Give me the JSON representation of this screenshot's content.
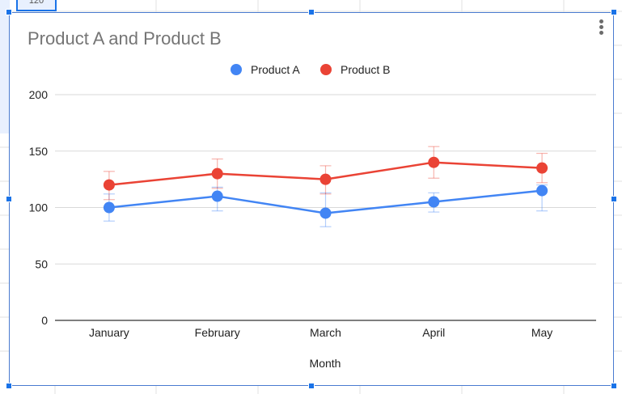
{
  "colors": {
    "product_a": "#4285f4",
    "product_b": "#ea4335",
    "gridline": "#d9d9d9",
    "baseline": "#333333",
    "selection": "#1a73e8"
  },
  "sheet": {
    "cell_fragment": "120"
  },
  "chart_data": {
    "type": "line",
    "title": "Product A and Product B",
    "xlabel": "Month",
    "ylabel": "",
    "categories": [
      "January",
      "February",
      "March",
      "April",
      "May"
    ],
    "series": [
      {
        "name": "Product A",
        "values": [
          100,
          110,
          95,
          105,
          115
        ],
        "error_low": [
          88,
          97,
          83,
          96,
          97
        ],
        "error_high": [
          112,
          118,
          113,
          113,
          120
        ]
      },
      {
        "name": "Product B",
        "values": [
          120,
          130,
          125,
          140,
          135
        ],
        "error_low": [
          107,
          117,
          112,
          126,
          122
        ],
        "error_high": [
          132,
          143,
          137,
          154,
          148
        ]
      }
    ],
    "ylim": [
      0,
      200
    ],
    "yticks": [
      0,
      50,
      100,
      150,
      200
    ],
    "grid": true,
    "legend": "top-center",
    "error_bars": true
  }
}
